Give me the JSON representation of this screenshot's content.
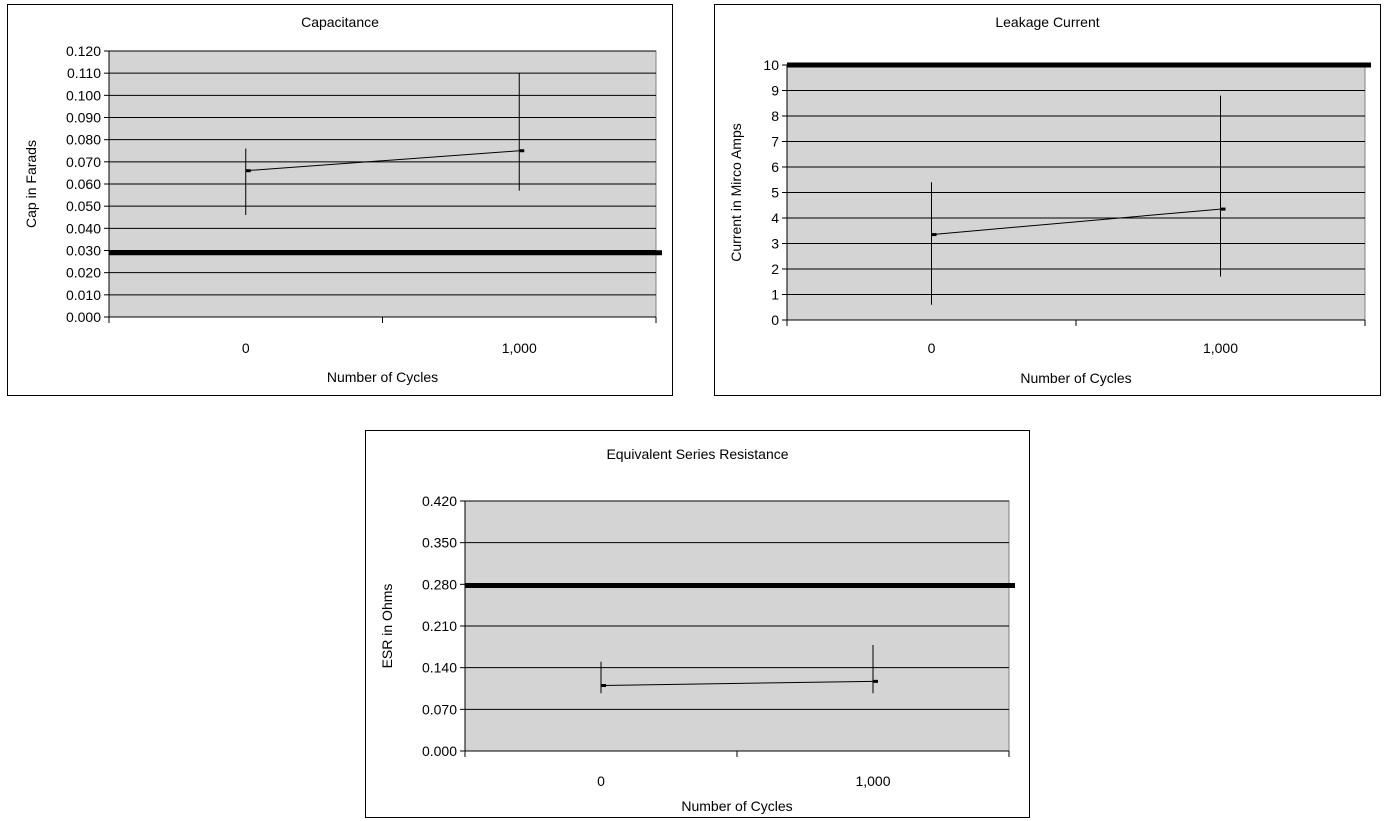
{
  "chart_data": [
    {
      "type": "line",
      "title": "Capacitance",
      "xlabel": "Number of Cycles",
      "ylabel": "Cap in Farads",
      "categories": [
        "0",
        "1,000"
      ],
      "ylim": [
        0,
        0.12
      ],
      "yticks": [
        "0.000",
        "0.010",
        "0.020",
        "0.030",
        "0.040",
        "0.050",
        "0.060",
        "0.070",
        "0.080",
        "0.090",
        "0.100",
        "0.110",
        "0.120"
      ],
      "grid": true,
      "legend": "none",
      "reference_line": 0.029,
      "series": [
        {
          "values": [
            0.066,
            0.075
          ],
          "low": [
            0.046,
            0.057
          ],
          "high": [
            0.076,
            0.11
          ]
        }
      ]
    },
    {
      "type": "line",
      "title": "Leakage Current",
      "xlabel": "Number of Cycles",
      "ylabel": "Current in Mirco Amps",
      "categories": [
        "0",
        "1,000"
      ],
      "ylim": [
        0,
        10
      ],
      "yticks": [
        "0",
        "1",
        "2",
        "3",
        "4",
        "5",
        "6",
        "7",
        "8",
        "9",
        "10"
      ],
      "grid": true,
      "legend": "none",
      "reference_line": 10,
      "series": [
        {
          "values": [
            3.35,
            4.35
          ],
          "low": [
            0.6,
            1.7
          ],
          "high": [
            5.4,
            8.8
          ]
        }
      ]
    },
    {
      "type": "line",
      "title": "Equivalent Series Resistance",
      "xlabel": "Number of Cycles",
      "ylabel": "ESR in Ohms",
      "categories": [
        "0",
        "1,000"
      ],
      "ylim": [
        0,
        0.42
      ],
      "yticks": [
        "0.000",
        "0.070",
        "0.140",
        "0.210",
        "0.280",
        "0.350",
        "0.420"
      ],
      "grid": true,
      "legend": "none",
      "reference_line": 0.278,
      "series": [
        {
          "values": [
            0.11,
            0.117
          ],
          "low": [
            0.097,
            0.097
          ],
          "high": [
            0.15,
            0.178
          ]
        }
      ]
    }
  ],
  "colors": {
    "plot_background": "#d4d4d4",
    "gridline": "#000000",
    "series_line": "#000000",
    "reference_line": "#000000"
  }
}
